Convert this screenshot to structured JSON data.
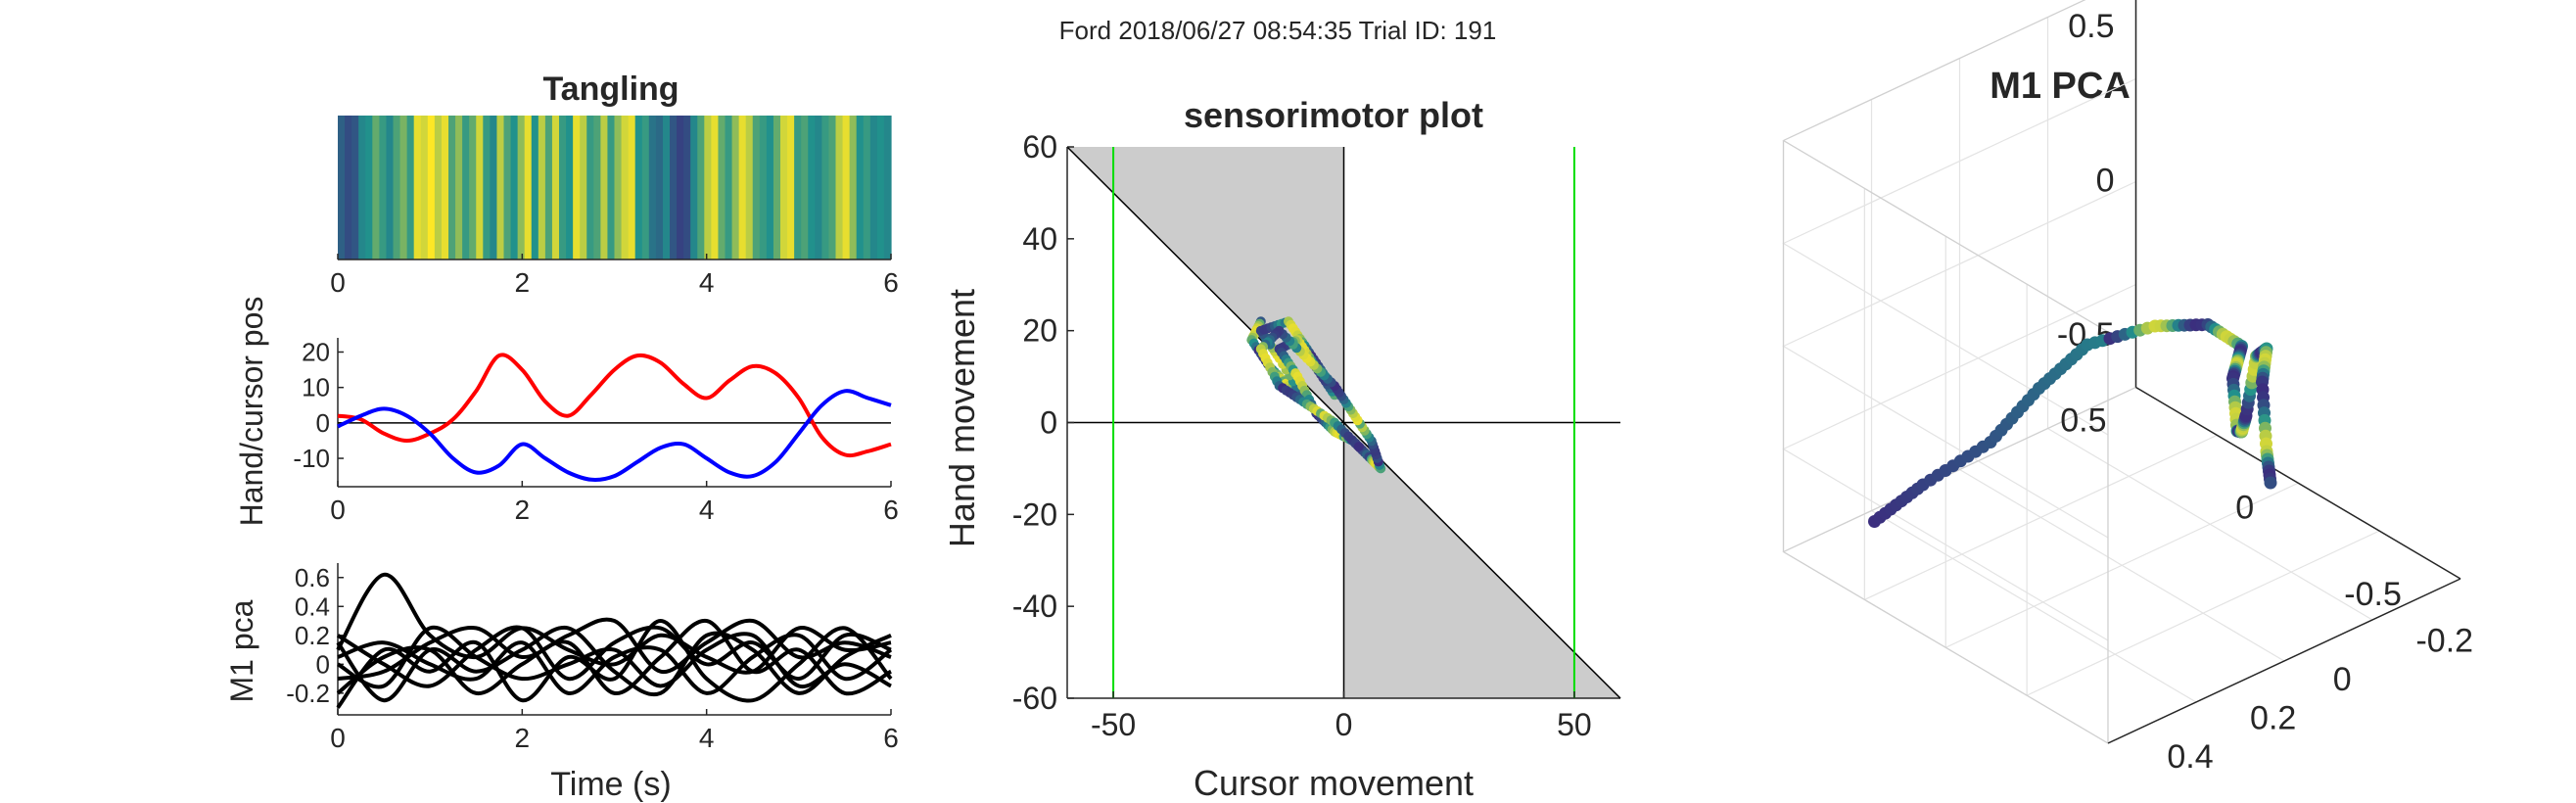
{
  "figure": {
    "title": "Ford 2018/06/27 08:54:35 Trial ID: 191"
  },
  "colors": {
    "hand": "#ff0000",
    "cursor": "#0000ff",
    "pca_traces": "#000000",
    "boundary": "#00dd00",
    "shaded": "#cccccc",
    "viridis_low": "#3b2e7e",
    "viridis_mid": "#21918c",
    "viridis_high": "#fde725"
  },
  "chart_data": [
    {
      "id": "tangling",
      "type": "heatmap",
      "title": "Tangling",
      "xlabel": "",
      "ylabel": "",
      "xlim": [
        0,
        6
      ],
      "xticks": [
        0,
        2,
        4,
        6
      ],
      "colormap": "viridis",
      "values": [
        0.25,
        0.15,
        0.2,
        0.45,
        0.5,
        0.65,
        0.55,
        0.45,
        0.6,
        0.7,
        0.55,
        0.95,
        0.9,
        1.0,
        0.85,
        0.95,
        0.6,
        0.75,
        0.55,
        0.65,
        0.9,
        0.55,
        0.45,
        0.85,
        0.6,
        0.5,
        0.75,
        0.95,
        0.5,
        0.85,
        0.6,
        0.9,
        0.55,
        0.5,
        0.95,
        0.85,
        0.55,
        0.6,
        0.85,
        0.55,
        0.75,
        0.9,
        0.95,
        0.5,
        0.55,
        0.35,
        0.3,
        0.45,
        0.2,
        0.1,
        0.15,
        0.45,
        0.6,
        0.85,
        0.95,
        0.65,
        0.55,
        0.75,
        0.95,
        0.85,
        0.6,
        0.55,
        0.5,
        0.65,
        0.9,
        0.95,
        0.55,
        0.6,
        0.5,
        0.45,
        0.55,
        0.6,
        0.85,
        0.95,
        0.75,
        0.5,
        0.55,
        0.45,
        0.5,
        0.45
      ]
    },
    {
      "id": "hand_cursor",
      "type": "line",
      "title": "",
      "xlabel": "",
      "ylabel": "Hand/cursor pos",
      "xlim": [
        0,
        6
      ],
      "ylim": [
        -18,
        24
      ],
      "xticks": [
        0,
        2,
        4,
        6
      ],
      "yticks": [
        20,
        10,
        0,
        -10
      ],
      "x": [
        0,
        0.25,
        0.5,
        0.75,
        1.0,
        1.25,
        1.5,
        1.75,
        2.0,
        2.25,
        2.5,
        2.75,
        3.0,
        3.25,
        3.5,
        3.75,
        4.0,
        4.25,
        4.5,
        4.75,
        5.0,
        5.25,
        5.5,
        5.75,
        6.0
      ],
      "series": [
        {
          "color": "#ff0000",
          "values": [
            2,
            1,
            -3,
            -5,
            -3,
            1,
            9,
            19,
            15,
            6,
            2,
            8,
            15,
            19,
            17,
            11,
            7,
            12,
            16,
            14,
            7,
            -4,
            -9,
            -8,
            -6
          ]
        },
        {
          "color": "#0000ff",
          "values": [
            -1,
            2,
            4,
            2,
            -3,
            -10,
            -14,
            -12,
            -6,
            -10,
            -14,
            -16,
            -15,
            -11,
            -7,
            -6,
            -10,
            -14,
            -15,
            -11,
            -3,
            5,
            9,
            7,
            5
          ]
        }
      ],
      "zero_line": true
    },
    {
      "id": "m1_pca_traces",
      "type": "line",
      "title": "",
      "xlabel": "Time (s)",
      "ylabel": "M1 pca",
      "xlim": [
        0,
        6
      ],
      "ylim": [
        -0.35,
        0.7
      ],
      "xticks": [
        0,
        2,
        4,
        6
      ],
      "yticks": [
        0.6,
        0.4,
        0.2,
        0,
        -0.2
      ],
      "x": [
        0,
        0.5,
        1.0,
        1.5,
        2.0,
        2.5,
        3.0,
        3.5,
        4.0,
        4.5,
        5.0,
        5.5,
        6.0
      ],
      "series": [
        {
          "values": [
            0.1,
            0.62,
            0.2,
            0.05,
            0.25,
            0.1,
            0.0,
            0.2,
            0.05,
            -0.05,
            0.25,
            0.1,
            0.15
          ]
        },
        {
          "values": [
            -0.1,
            -0.05,
            0.15,
            0.25,
            0.05,
            0.2,
            0.3,
            -0.05,
            0.15,
            0.3,
            0.05,
            0.15,
            0.05
          ]
        },
        {
          "values": [
            0.2,
            0.0,
            -0.15,
            0.1,
            0.25,
            -0.1,
            0.15,
            0.25,
            0.0,
            0.15,
            -0.1,
            0.2,
            0.1
          ]
        },
        {
          "values": [
            -0.2,
            0.05,
            0.1,
            -0.2,
            0.0,
            0.15,
            -0.2,
            0.05,
            0.3,
            -0.05,
            0.1,
            -0.2,
            -0.05
          ]
        },
        {
          "values": [
            0.0,
            -0.15,
            0.25,
            0.05,
            -0.1,
            0.0,
            0.1,
            -0.15,
            0.1,
            0.2,
            -0.15,
            0.0,
            -0.15
          ]
        },
        {
          "values": [
            0.05,
            0.15,
            0.0,
            -0.1,
            0.15,
            -0.2,
            0.05,
            0.1,
            -0.2,
            0.05,
            0.2,
            -0.1,
            0.1
          ]
        },
        {
          "values": [
            -0.3,
            0.1,
            -0.05,
            0.15,
            -0.25,
            0.05,
            -0.1,
            0.3,
            -0.1,
            -0.25,
            0.0,
            0.25,
            -0.1
          ]
        },
        {
          "values": [
            0.15,
            -0.25,
            0.1,
            -0.05,
            0.1,
            0.25,
            -0.05,
            -0.2,
            0.2,
            0.1,
            -0.2,
            0.05,
            0.2
          ]
        }
      ]
    },
    {
      "id": "sensorimotor",
      "type": "scatter",
      "title": "sensorimotor plot",
      "xlabel": "Cursor movement",
      "ylabel": "Hand movement",
      "xlim": [
        -60,
        60
      ],
      "ylim": [
        -60,
        60
      ],
      "xticks": [
        -50,
        0,
        50
      ],
      "yticks": [
        60,
        40,
        20,
        0,
        -20,
        -40,
        -60
      ],
      "boundaries_x": [
        -50,
        50
      ],
      "trajectory": [
        [
          -18,
          22
        ],
        [
          -20,
          18
        ],
        [
          -16,
          12
        ],
        [
          -12,
          8
        ],
        [
          -8,
          4
        ],
        [
          -14,
          14
        ],
        [
          -18,
          20
        ],
        [
          -12,
          22
        ],
        [
          -8,
          16
        ],
        [
          -4,
          10
        ],
        [
          -2,
          6
        ],
        [
          -6,
          12
        ],
        [
          -10,
          18
        ],
        [
          -14,
          16
        ],
        [
          -10,
          10
        ],
        [
          -6,
          2
        ],
        [
          -2,
          -2
        ],
        [
          2,
          -4
        ],
        [
          6,
          -8
        ],
        [
          8,
          -10
        ],
        [
          6,
          -4
        ],
        [
          2,
          2
        ],
        [
          -2,
          8
        ],
        [
          -8,
          14
        ],
        [
          -14,
          20
        ],
        [
          -18,
          16
        ],
        [
          -14,
          8
        ],
        [
          -8,
          4
        ],
        [
          -2,
          0
        ],
        [
          4,
          -6
        ]
      ]
    },
    {
      "id": "m1_pca_3d",
      "type": "scatter",
      "title": "M1 PCA",
      "xlabel": "",
      "ylabel": "",
      "zticks": [
        0.5,
        0,
        -0.5
      ],
      "yticks": [
        0.5,
        0,
        -0.5
      ],
      "xticks": [
        -0.2,
        0,
        0.2,
        0.4
      ],
      "trajectory": [
        [
          -0.15,
          0.55,
          -0.4
        ],
        [
          -0.1,
          0.45,
          -0.3
        ],
        [
          0.0,
          0.35,
          -0.15
        ],
        [
          0.05,
          0.25,
          0.0
        ],
        [
          0.1,
          0.15,
          0.12
        ],
        [
          0.2,
          0.05,
          0.2
        ],
        [
          0.3,
          0.0,
          0.25
        ],
        [
          0.35,
          -0.05,
          0.2
        ],
        [
          0.3,
          -0.1,
          0.1
        ],
        [
          0.25,
          -0.15,
          0.0
        ],
        [
          0.3,
          -0.1,
          -0.1
        ],
        [
          0.35,
          -0.05,
          -0.05
        ],
        [
          0.4,
          0.0,
          0.05
        ],
        [
          0.35,
          -0.1,
          0.15
        ],
        [
          0.3,
          -0.2,
          0.1
        ],
        [
          0.25,
          -0.25,
          -0.05
        ],
        [
          0.3,
          -0.2,
          -0.2
        ],
        [
          0.35,
          -0.15,
          -0.25
        ]
      ]
    }
  ]
}
